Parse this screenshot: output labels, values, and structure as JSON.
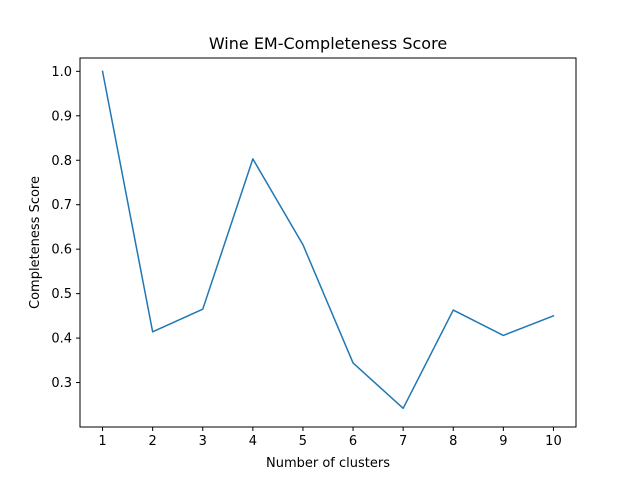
{
  "chart_data": {
    "type": "line",
    "title": "Wine EM-Completeness Score",
    "xlabel": "Number of clusters",
    "ylabel": "Completeness Score",
    "x": [
      1,
      2,
      3,
      4,
      5,
      6,
      7,
      8,
      9,
      10
    ],
    "series": [
      {
        "values": [
          1.0,
          0.414,
          0.465,
          0.803,
          0.61,
          0.344,
          0.242,
          0.463,
          0.406,
          0.45
        ],
        "color": "#1f77b4"
      }
    ],
    "xticks": [
      "1",
      "2",
      "3",
      "4",
      "5",
      "6",
      "7",
      "8",
      "9",
      "10"
    ],
    "yticks": [
      "0.3",
      "0.4",
      "0.5",
      "0.6",
      "0.7",
      "0.8",
      "0.9",
      "1.0"
    ],
    "xlim": [
      0.55,
      10.45
    ],
    "ylim": [
      0.2,
      1.03
    ],
    "grid": false,
    "legend": "none"
  }
}
